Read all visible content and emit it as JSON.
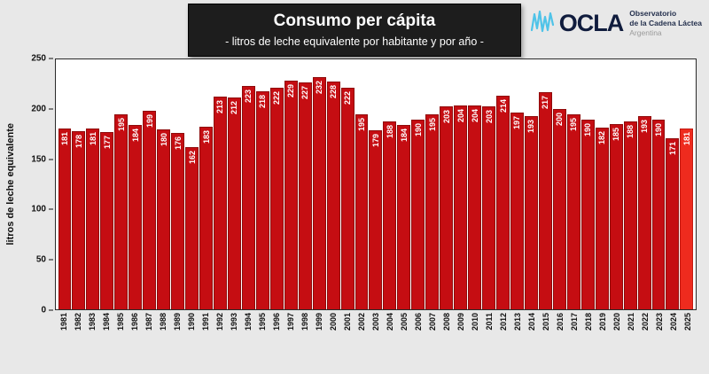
{
  "header": {
    "title": "Consumo per cápita",
    "subtitle": "- litros de leche equivalente por habitante y por año -"
  },
  "logo": {
    "name": "OCLA",
    "line1": "Observatorio",
    "line2": "de la Cadena Láctea",
    "line3": "Argentina"
  },
  "chart_data": {
    "type": "bar",
    "title": "Consumo per cápita",
    "subtitle": "litros de leche equivalente por habitante y por año",
    "ylabel": "litros de leche equivalente",
    "xlabel": "",
    "ylim": [
      0,
      250
    ],
    "yticks": [
      0,
      50,
      100,
      150,
      200,
      250
    ],
    "grid": false,
    "legend": "none",
    "value_labels": "white, rotated 90°, inside bar tops",
    "categories": [
      "1981",
      "1982",
      "1983",
      "1984",
      "1985",
      "1986",
      "1987",
      "1988",
      "1989",
      "1990",
      "1991",
      "1992",
      "1993",
      "1994",
      "1995",
      "1996",
      "1997",
      "1998",
      "1999",
      "2000",
      "2001",
      "2002",
      "2003",
      "2004",
      "2005",
      "2006",
      "2007",
      "2008",
      "2009",
      "2010",
      "2011",
      "2012",
      "2013",
      "2014",
      "2015",
      "2016",
      "2017",
      "2018",
      "2019",
      "2020",
      "2021",
      "2022",
      "2023",
      "2024",
      "2025"
    ],
    "values": [
      181,
      178,
      181,
      177,
      195,
      184,
      199,
      180,
      176,
      162,
      183,
      213,
      212,
      223,
      218,
      222,
      229,
      227,
      232,
      228,
      222,
      195,
      179,
      188,
      184,
      190,
      195,
      203,
      204,
      204,
      203,
      214,
      197,
      193,
      217,
      200,
      195,
      190,
      182,
      185,
      188,
      193,
      190,
      171,
      181
    ],
    "colors": {
      "bar": "#c50d12",
      "bar_edge": "#8f0b0b",
      "bar_last": "#ee2b1e",
      "bar_last_edge": "#c21a12",
      "background": "#e8e8e8",
      "plot_background": "#ffffff",
      "header_background": "#1d1d1d",
      "logo_wave": "#4fc3e8",
      "logo_text": "#101c3d"
    }
  }
}
